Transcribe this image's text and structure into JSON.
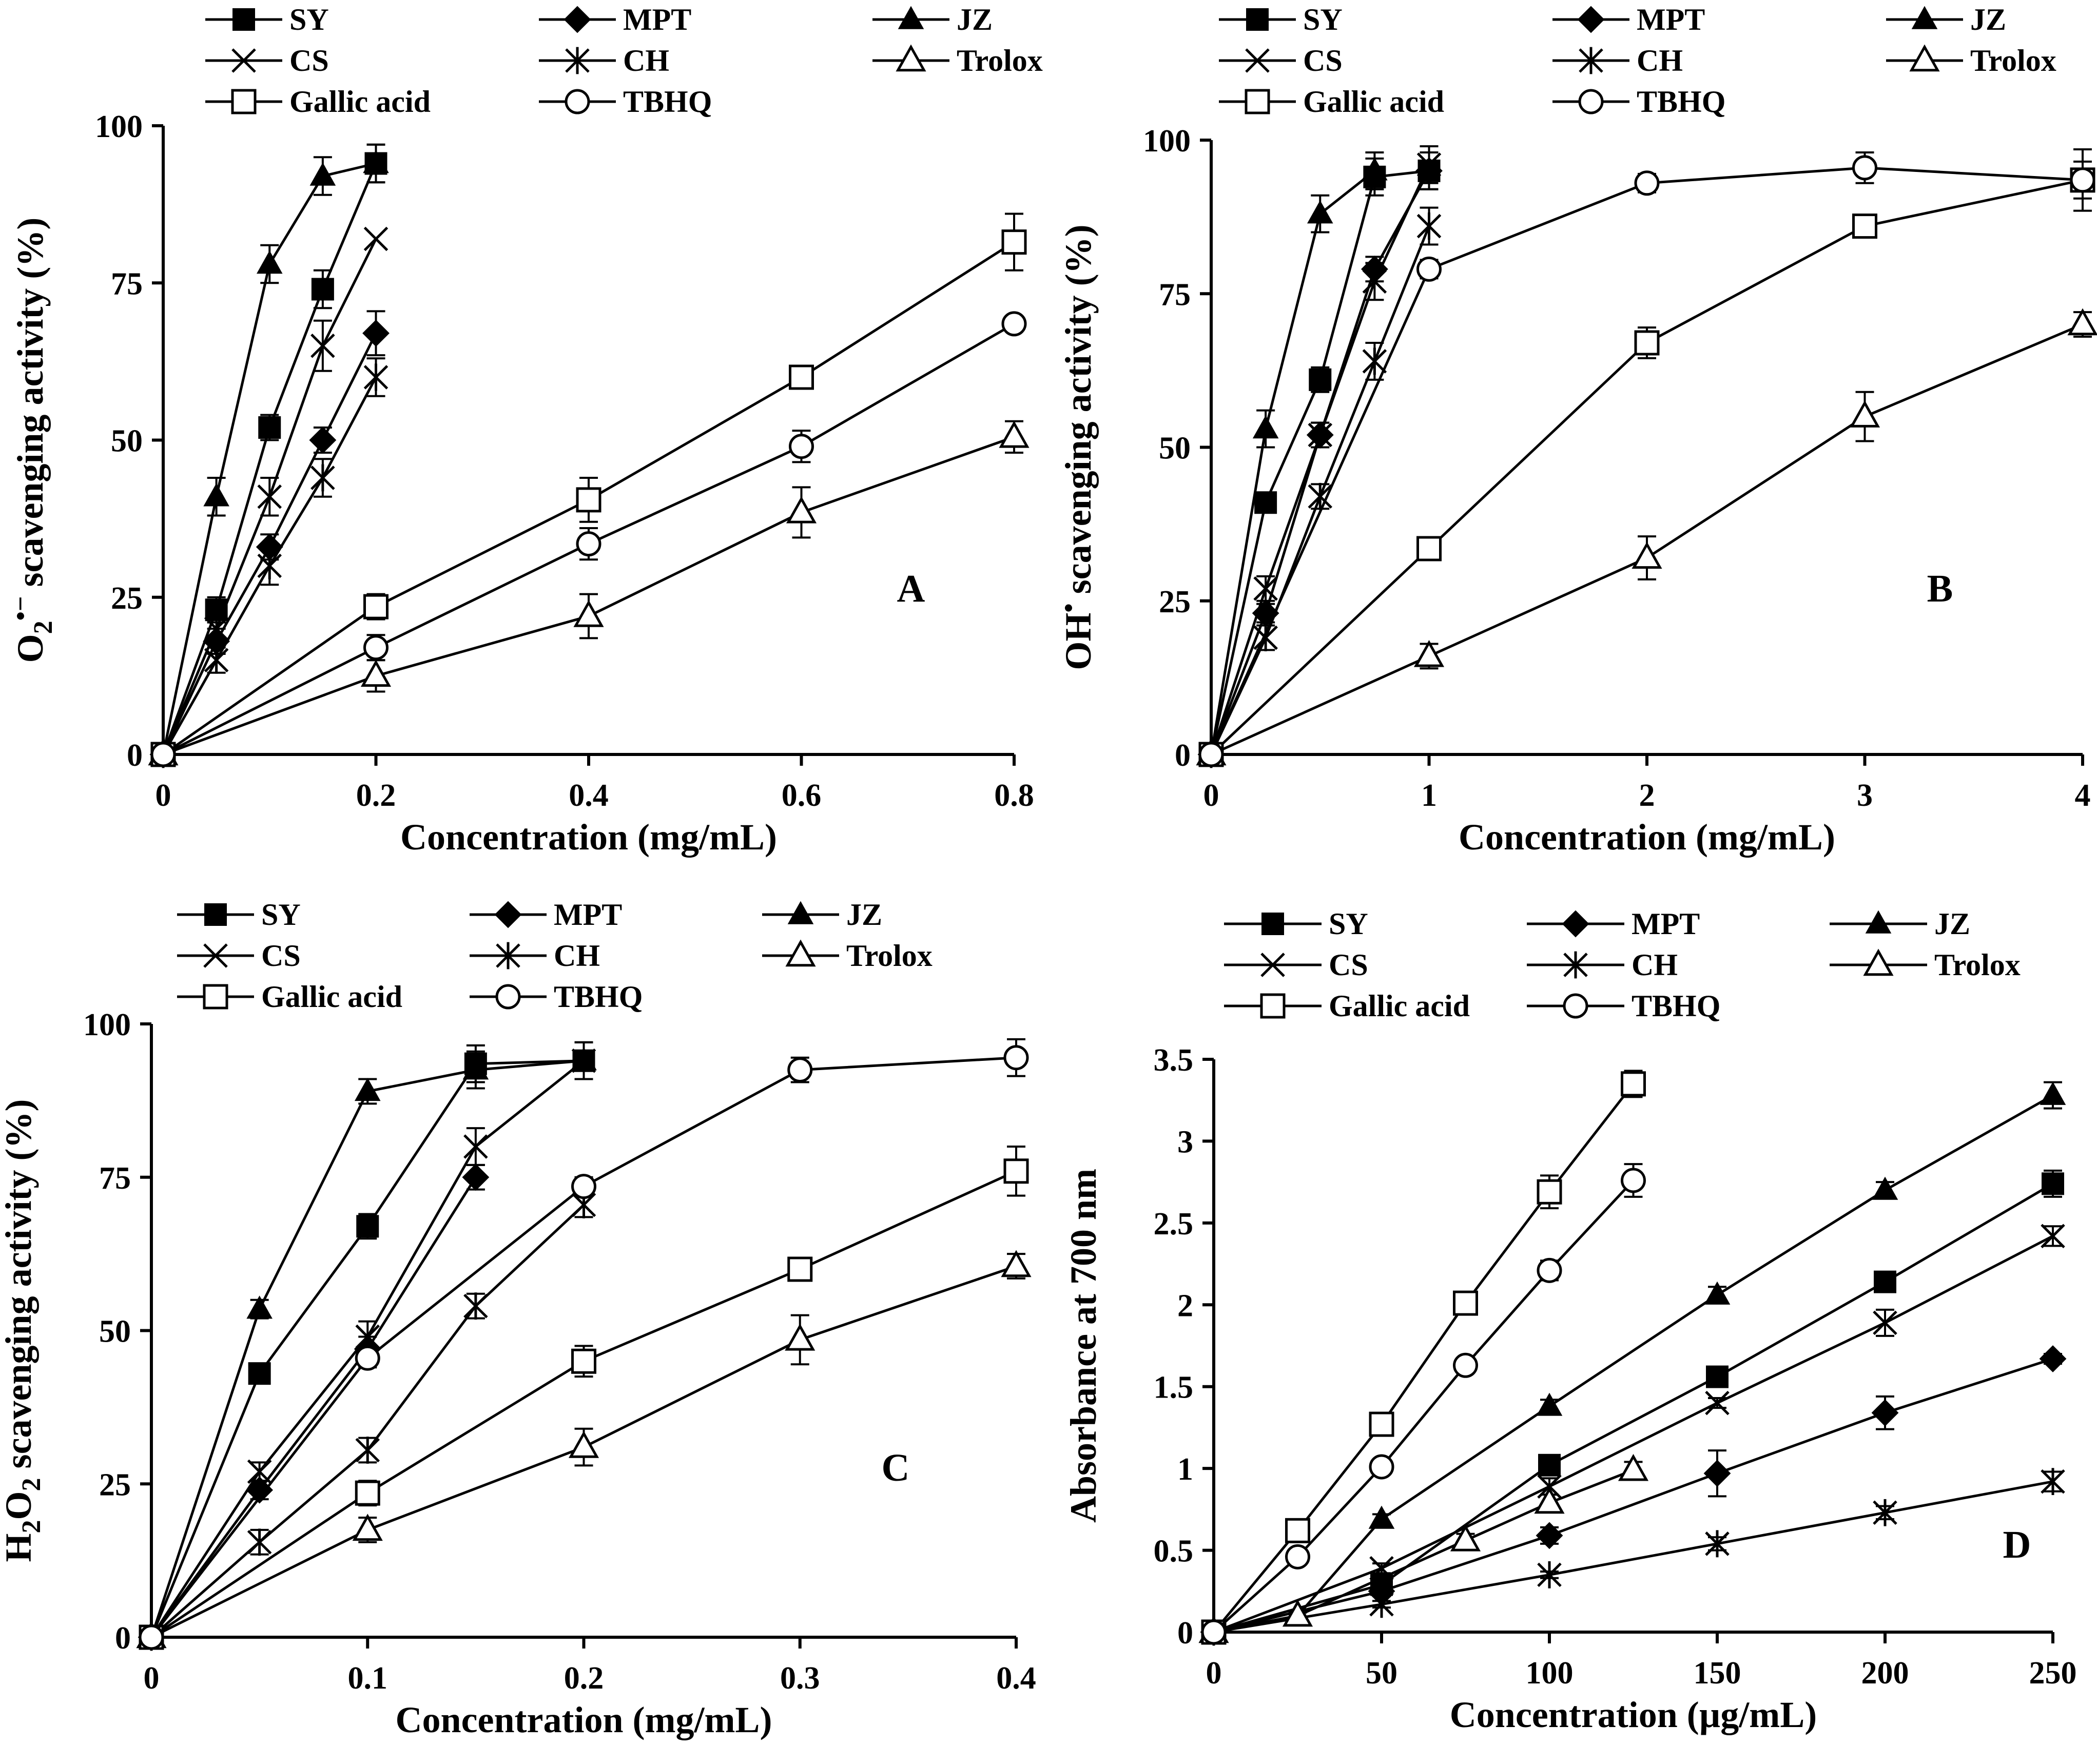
{
  "chart_data": [
    {
      "type": "line",
      "panel_label": "A",
      "xlabel": "Concentration (mg/mL)",
      "ylabel": "O2•− scavenging activity (%)",
      "ylabel_parts": {
        "base": "O",
        "sub": "2",
        "sup": "•−",
        "rest": " scavenging activity (%)"
      },
      "xlim": [
        0,
        0.8
      ],
      "ylim": [
        0,
        100
      ],
      "xticks": [
        0,
        0.2,
        0.4,
        0.6,
        0.8
      ],
      "xtick_labels": [
        "0",
        "0.2",
        "0.4",
        "0.6",
        "0.8"
      ],
      "yticks": [
        0,
        25,
        50,
        75,
        100
      ],
      "ytick_labels": [
        "0",
        "25",
        "50",
        "75",
        "100"
      ],
      "series": [
        {
          "name": "SY",
          "marker": "square-filled",
          "x": [
            0,
            0.05,
            0.1,
            0.15,
            0.2
          ],
          "y": [
            0,
            23,
            52,
            74,
            94
          ],
          "err": [
            0,
            2,
            2,
            3,
            3
          ]
        },
        {
          "name": "MPT",
          "marker": "diamond-filled",
          "x": [
            0,
            0.05,
            0.1,
            0.15,
            0.2
          ],
          "y": [
            0,
            18,
            33,
            50,
            67
          ],
          "err": [
            0,
            2,
            2,
            2,
            3.5
          ]
        },
        {
          "name": "JZ",
          "marker": "triangle-filled",
          "x": [
            0,
            0.05,
            0.1,
            0.15,
            0.2
          ],
          "y": [
            0,
            41,
            78,
            92,
            94
          ],
          "err": [
            0,
            3,
            3,
            3,
            3
          ]
        },
        {
          "name": "CS",
          "marker": "x",
          "x": [
            0,
            0.05,
            0.1,
            0.15,
            0.2
          ],
          "y": [
            0,
            20,
            41,
            65,
            82
          ],
          "err": [
            0,
            2,
            3,
            4,
            0
          ]
        },
        {
          "name": "CH",
          "marker": "star",
          "x": [
            0,
            0.05,
            0.1,
            0.15,
            0.2
          ],
          "y": [
            0,
            15,
            30,
            44,
            60
          ],
          "err": [
            0,
            2,
            3,
            3,
            3
          ]
        },
        {
          "name": "Trolox",
          "marker": "triangle-open",
          "x": [
            0,
            0.2,
            0.4,
            0.6,
            0.8
          ],
          "y": [
            0,
            12.5,
            22,
            38.5,
            50.5
          ],
          "err": [
            0,
            2.5,
            3.5,
            4,
            2.5
          ]
        },
        {
          "name": "Gallic acid",
          "marker": "square-open",
          "x": [
            0,
            0.2,
            0.4,
            0.6,
            0.8
          ],
          "y": [
            0,
            23.5,
            40.5,
            60,
            81.5
          ],
          "err": [
            0,
            2,
            3.5,
            1.5,
            4.5
          ]
        },
        {
          "name": "TBHQ",
          "marker": "circle-open",
          "x": [
            0,
            0.2,
            0.4,
            0.6,
            0.8
          ],
          "y": [
            0,
            17,
            33.5,
            49,
            68.5
          ],
          "err": [
            0,
            2,
            2.5,
            2.5,
            1
          ]
        }
      ]
    },
    {
      "type": "line",
      "panel_label": "B",
      "xlabel": "Concentration (mg/mL)",
      "ylabel": "OH• scavenging activity (%)",
      "ylabel_parts": {
        "base": "OH",
        "sub": "",
        "sup": "•",
        "rest": " scavenging activity (%)"
      },
      "xlim": [
        0,
        4
      ],
      "ylim": [
        0,
        100
      ],
      "xticks": [
        0,
        1,
        2,
        3,
        4
      ],
      "xtick_labels": [
        "0",
        "1",
        "2",
        "3",
        "4"
      ],
      "yticks": [
        0,
        25,
        50,
        75,
        100
      ],
      "ytick_labels": [
        "0",
        "25",
        "50",
        "75",
        "100"
      ],
      "series": [
        {
          "name": "SY",
          "marker": "square-filled",
          "x": [
            0,
            0.25,
            0.5,
            0.75,
            1
          ],
          "y": [
            0,
            41,
            61,
            94,
            95
          ],
          "err": [
            0,
            1.5,
            2,
            3,
            3
          ]
        },
        {
          "name": "MPT",
          "marker": "diamond-filled",
          "x": [
            0,
            0.25,
            0.5,
            0.75,
            1
          ],
          "y": [
            0,
            23,
            52,
            79,
            95
          ],
          "err": [
            0,
            1.5,
            2,
            2,
            3
          ]
        },
        {
          "name": "JZ",
          "marker": "triangle-filled",
          "x": [
            0,
            0.25,
            0.5,
            0.75
          ],
          "y": [
            0,
            53,
            88,
            95
          ],
          "err": [
            0,
            3,
            3,
            3
          ]
        },
        {
          "name": "CS",
          "marker": "x",
          "x": [
            0,
            0.25,
            0.5,
            0.75,
            1
          ],
          "y": [
            0,
            27,
            52,
            77,
            96
          ],
          "err": [
            0,
            2,
            2,
            3,
            3
          ]
        },
        {
          "name": "CH",
          "marker": "star",
          "x": [
            0,
            0.25,
            0.5,
            0.75,
            1
          ],
          "y": [
            0,
            19,
            42,
            64,
            86
          ],
          "err": [
            0,
            2,
            2,
            3,
            3
          ]
        },
        {
          "name": "Trolox",
          "marker": "triangle-open",
          "x": [
            0,
            1,
            2,
            3,
            4
          ],
          "y": [
            0,
            16,
            32,
            55,
            70
          ],
          "err": [
            0,
            2,
            3.5,
            4,
            2
          ]
        },
        {
          "name": "Gallic acid",
          "marker": "square-open",
          "x": [
            0,
            1,
            2,
            3,
            4
          ],
          "y": [
            0,
            33.5,
            67,
            86,
            93.5
          ],
          "err": [
            0,
            1.5,
            2.5,
            1.5,
            3
          ]
        },
        {
          "name": "TBHQ",
          "marker": "circle-open",
          "x": [
            0,
            1,
            2,
            3,
            4
          ],
          "y": [
            0,
            79,
            93,
            95.5,
            93.5
          ],
          "err": [
            0,
            1.5,
            1.5,
            2.5,
            5
          ]
        }
      ]
    },
    {
      "type": "line",
      "panel_label": "C",
      "xlabel": "Concentration (mg/mL)",
      "ylabel": "H2O2 scavenging activity (%)",
      "ylabel_parts": {
        "base": "H",
        "sub": "2",
        "mid": "O",
        "sub2": "2",
        "rest": " scavenging activity (%)"
      },
      "xlim": [
        0,
        0.4
      ],
      "ylim": [
        0,
        100
      ],
      "xticks": [
        0,
        0.1,
        0.2,
        0.3,
        0.4
      ],
      "xtick_labels": [
        "0",
        "0.1",
        "0.2",
        "0.3",
        "0.4"
      ],
      "yticks": [
        0,
        25,
        50,
        75,
        100
      ],
      "ytick_labels": [
        "0",
        "25",
        "50",
        "75",
        "100"
      ],
      "series": [
        {
          "name": "SY",
          "marker": "square-filled",
          "x": [
            0,
            0.05,
            0.1,
            0.15,
            0.2
          ],
          "y": [
            0,
            43,
            67,
            93.5,
            94
          ],
          "err": [
            0,
            1.5,
            2,
            3,
            3
          ]
        },
        {
          "name": "MPT",
          "marker": "diamond-filled",
          "x": [
            0,
            0.05,
            0.1,
            0.15
          ],
          "y": [
            0,
            24,
            47,
            75
          ],
          "err": [
            0,
            1.5,
            2,
            2
          ]
        },
        {
          "name": "JZ",
          "marker": "triangle-filled",
          "x": [
            0,
            0.05,
            0.1,
            0.15,
            0.2
          ],
          "y": [
            0,
            53.5,
            89,
            92.5,
            94
          ],
          "err": [
            0,
            1.5,
            2,
            3,
            3
          ]
        },
        {
          "name": "CS",
          "marker": "x",
          "x": [
            0,
            0.05,
            0.1,
            0.15,
            0.2
          ],
          "y": [
            0,
            27,
            49,
            80,
            94
          ],
          "err": [
            0,
            1.5,
            2.5,
            3,
            3
          ]
        },
        {
          "name": "CH",
          "marker": "star",
          "x": [
            0,
            0.05,
            0.1,
            0.15,
            0.2
          ],
          "y": [
            0,
            15.5,
            30.5,
            54,
            70.5
          ],
          "err": [
            0,
            2,
            2,
            2,
            2
          ]
        },
        {
          "name": "Trolox",
          "marker": "triangle-open",
          "x": [
            0,
            0.1,
            0.2,
            0.3,
            0.4
          ],
          "y": [
            0,
            17.5,
            31,
            48.5,
            60.5
          ],
          "err": [
            0,
            2,
            3,
            4,
            2
          ]
        },
        {
          "name": "Gallic acid",
          "marker": "square-open",
          "x": [
            0,
            0.1,
            0.2,
            0.3,
            0.4
          ],
          "y": [
            0,
            23.5,
            45,
            60,
            76
          ],
          "err": [
            0,
            2,
            2.5,
            1.5,
            4
          ]
        },
        {
          "name": "TBHQ",
          "marker": "circle-open",
          "x": [
            0,
            0.1,
            0.2,
            0.3,
            0.4
          ],
          "y": [
            0,
            45.5,
            73.5,
            92.5,
            94.5
          ],
          "err": [
            0,
            1.5,
            1.5,
            2,
            3
          ]
        }
      ]
    },
    {
      "type": "line",
      "panel_label": "D",
      "xlabel": "Concentration (µg/mL)",
      "ylabel": "Absorbance at 700 nm",
      "ylabel_parts": {
        "base": "Absorbance at 700 nm"
      },
      "xlim": [
        0,
        250
      ],
      "ylim": [
        0,
        3.5
      ],
      "xticks": [
        0,
        50,
        100,
        150,
        200,
        250
      ],
      "xtick_labels": [
        "0",
        "50",
        "100",
        "150",
        "200",
        "250"
      ],
      "yticks": [
        0,
        0.5,
        1,
        1.5,
        2,
        2.5,
        3,
        3.5
      ],
      "ytick_labels": [
        "0",
        "0.5",
        "1",
        "1.5",
        "2",
        "2.5",
        "3",
        "3.5"
      ],
      "series": [
        {
          "name": "SY",
          "marker": "square-filled",
          "x": [
            0,
            50,
            100,
            150,
            200,
            250
          ],
          "y": [
            0,
            0.29,
            1.02,
            1.56,
            2.14,
            2.74
          ],
          "err": [
            0,
            0.03,
            0.03,
            0.03,
            0.06,
            0.08
          ]
        },
        {
          "name": "MPT",
          "marker": "diamond-filled",
          "x": [
            0,
            50,
            100,
            150,
            200,
            250
          ],
          "y": [
            0,
            0.25,
            0.59,
            0.97,
            1.34,
            1.67
          ],
          "err": [
            0,
            0.03,
            0.05,
            0.14,
            0.1,
            0.03
          ]
        },
        {
          "name": "JZ",
          "marker": "triangle-filled",
          "x": [
            0,
            25,
            50,
            100,
            150,
            200,
            250
          ],
          "y": [
            0,
            0.1,
            0.69,
            1.38,
            2.06,
            2.7,
            3.28
          ],
          "err": [
            0,
            0.02,
            0.03,
            0.04,
            0.05,
            0.05,
            0.08
          ]
        },
        {
          "name": "CS",
          "marker": "x",
          "x": [
            0,
            50,
            100,
            150,
            200,
            250
          ],
          "y": [
            0,
            0.39,
            0.89,
            1.4,
            1.89,
            2.42
          ],
          "err": [
            0,
            0.03,
            0.05,
            0.03,
            0.08,
            0.06
          ]
        },
        {
          "name": "CH",
          "marker": "star",
          "x": [
            0,
            50,
            100,
            150,
            200,
            250
          ],
          "y": [
            0,
            0.17,
            0.35,
            0.54,
            0.73,
            0.92
          ],
          "err": [
            0,
            0.02,
            0.02,
            0.04,
            0.04,
            0.06
          ]
        },
        {
          "name": "Trolox",
          "marker": "triangle-open",
          "x": [
            0,
            25,
            75,
            100,
            125
          ],
          "y": [
            0,
            0.1,
            0.56,
            0.79,
            0.99
          ],
          "err": [
            0,
            0.02,
            0.04,
            0.05,
            0.05
          ]
        },
        {
          "name": "Gallic acid",
          "marker": "square-open",
          "x": [
            0,
            25,
            50,
            75,
            100,
            125
          ],
          "y": [
            0,
            0.62,
            1.27,
            2.01,
            2.69,
            3.35
          ],
          "err": [
            0,
            0.03,
            0.07,
            0.05,
            0.1,
            0.08
          ]
        },
        {
          "name": "TBHQ",
          "marker": "circle-open",
          "x": [
            0,
            25,
            50,
            75,
            100,
            125
          ],
          "y": [
            0,
            0.46,
            1.01,
            1.63,
            2.21,
            2.76
          ],
          "err": [
            0,
            0.02,
            0.03,
            0.03,
            0.06,
            0.1
          ]
        }
      ]
    }
  ]
}
